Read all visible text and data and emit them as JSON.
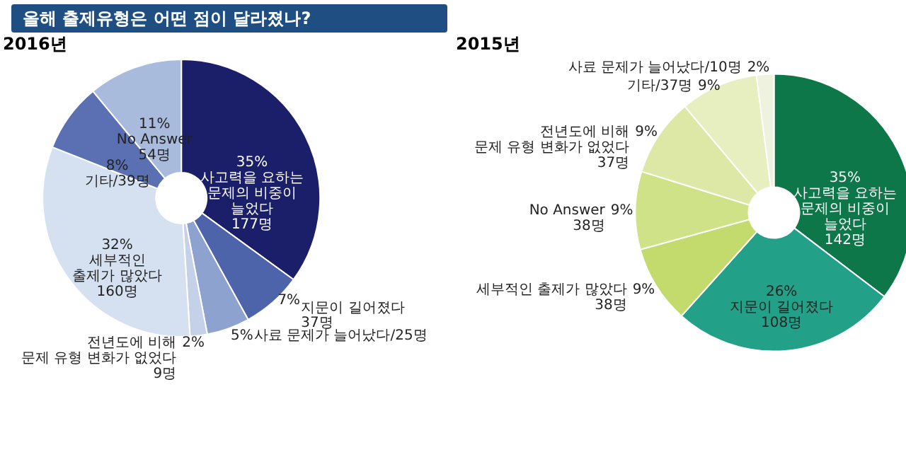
{
  "chart_data": [
    {
      "type": "donut",
      "title": "올해 출제유형은 어떤 점이 달라졌나?",
      "subtitle": "2016년",
      "categories": [
        "사고력을 요하는\n문제의 비중이\n늘었다\n177명",
        "지문이 길어졌다\n37명",
        "사료 문제가 늘어났다/25명",
        "전년도에 비해\n문제 유형 변화가 없었다\n9명",
        "세부적인\n출제가 많았다\n160명",
        "기타/39명",
        "No Answer\n54명"
      ],
      "values": [
        35,
        7,
        5,
        2,
        32,
        8,
        11
      ],
      "value_labels": [
        "35%",
        "7%",
        "5%",
        "2%",
        "32%",
        "8%",
        "11%"
      ],
      "colors": [
        "#1b1f6a",
        "#4d63aa",
        "#8ea2cf",
        "#c4d1e8",
        "#d5e1f1",
        "#5a70b3",
        "#a9bbdd"
      ]
    },
    {
      "type": "donut",
      "title": "2015년",
      "categories": [
        "사고력을 요하는\n문제의 비중이\n늘었다\n142명",
        "지문이 길어졌다\n108명",
        "세부적인 출제가 많았다\n38명",
        "No Answer\n38명",
        "전년도에 비해\n문제 유형 변화가 없었다\n37명",
        "기타/37명",
        "사료 문제가 늘어났다/10명"
      ],
      "values": [
        35,
        26,
        9,
        9,
        9,
        9,
        2
      ],
      "value_labels": [
        "35%",
        "26%",
        "9%",
        "9%",
        "9%",
        "9%",
        "2%"
      ],
      "colors": [
        "#0e774a",
        "#23a088",
        "#c3da6c",
        "#d0e287",
        "#dde8a6",
        "#e7eec0",
        "#eef2de"
      ]
    }
  ]
}
